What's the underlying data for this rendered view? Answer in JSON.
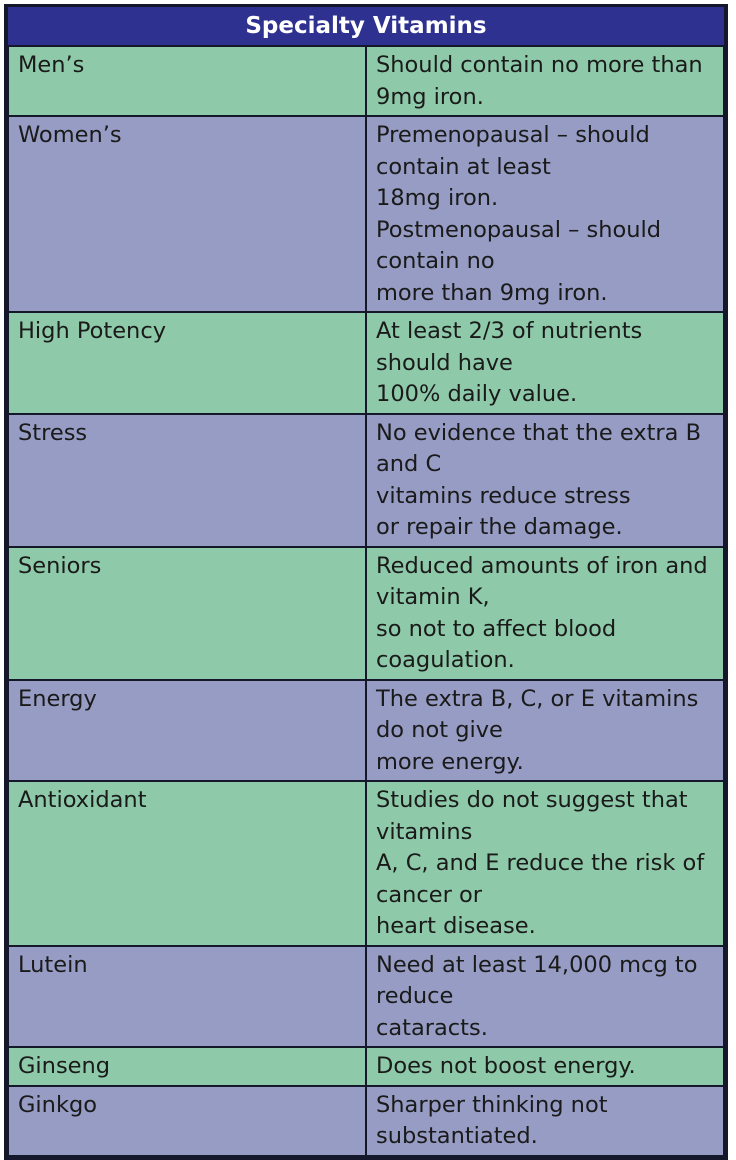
{
  "title": "Specialty Vitamins",
  "colors": {
    "header_bg": "#2e3190",
    "header_text": "#ffffff",
    "row_green": "#8ecaa9",
    "row_purple": "#969cc4",
    "border": "#15172b"
  },
  "rows": [
    {
      "category": "Men’s",
      "lines": [
        "Should contain no more than 9mg iron."
      ]
    },
    {
      "category": "Women’s",
      "lines": [
        "Premenopausal – should contain at least",
        "18mg iron.",
        "Postmenopausal – should contain no",
        "more than 9mg iron."
      ]
    },
    {
      "category": "High Potency",
      "lines": [
        "At least 2/3 of nutrients should have",
        "100% daily value."
      ]
    },
    {
      "category": "Stress",
      "lines": [
        "No evidence that the extra B and C",
        "vitamins reduce stress",
        "or repair the damage."
      ]
    },
    {
      "category": "Seniors",
      "lines": [
        "Reduced amounts of iron and vitamin K,",
        "so not to affect blood coagulation."
      ]
    },
    {
      "category": "Energy",
      "lines": [
        "The extra B, C, or E vitamins do not give",
        "more energy."
      ]
    },
    {
      "category": "Antioxidant",
      "lines": [
        "Studies do not suggest that vitamins",
        "A, C, and E reduce the risk of cancer or",
        "heart disease."
      ]
    },
    {
      "category": "Lutein",
      "lines": [
        "Need at least 14,000 mcg to reduce",
        "cataracts."
      ]
    },
    {
      "category": "Ginseng",
      "lines": [
        "Does not boost energy."
      ]
    },
    {
      "category": "Ginkgo",
      "lines": [
        "Sharper thinking not substantiated."
      ]
    }
  ]
}
